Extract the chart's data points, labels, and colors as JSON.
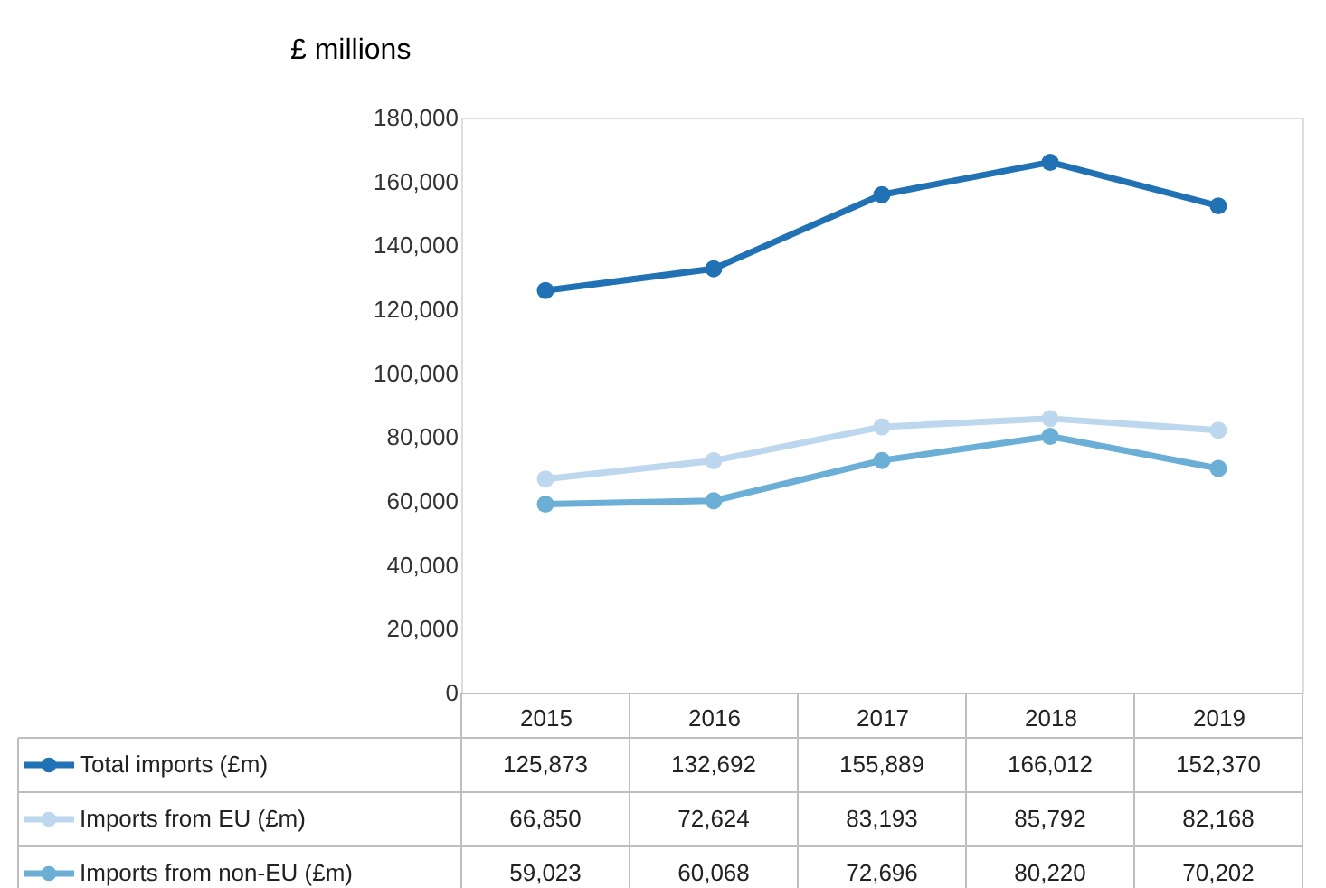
{
  "chart_data": {
    "type": "line",
    "ylabel": "£ millions",
    "categories": [
      "2015",
      "2016",
      "2017",
      "2018",
      "2019"
    ],
    "series": [
      {
        "name": "Total imports (£m)",
        "color": "#2171b5",
        "values": [
          125873,
          132692,
          155889,
          166012,
          152370
        ],
        "value_labels": [
          "125,873",
          "132,692",
          "155,889",
          "166,012",
          "152,370"
        ]
      },
      {
        "name": "Imports from EU (£m)",
        "color": "#bdd7ee",
        "values": [
          66850,
          72624,
          83193,
          85792,
          82168
        ],
        "value_labels": [
          "66,850",
          "72,624",
          "83,193",
          "85,792",
          "82,168"
        ]
      },
      {
        "name": "Imports from non-EU (£m)",
        "color": "#6baed6",
        "values": [
          59023,
          60068,
          72696,
          80220,
          70202
        ],
        "value_labels": [
          "59,023",
          "60,068",
          "72,696",
          "80,220",
          "70,202"
        ]
      }
    ],
    "ylim": [
      0,
      180000
    ],
    "yticks": [
      {
        "value": 0,
        "label": "0"
      },
      {
        "value": 20000,
        "label": "20,000"
      },
      {
        "value": 40000,
        "label": "40,000"
      },
      {
        "value": 60000,
        "label": "60,000"
      },
      {
        "value": 80000,
        "label": "80,000"
      },
      {
        "value": 100000,
        "label": "100,000"
      },
      {
        "value": 120000,
        "label": "120,000"
      },
      {
        "value": 140000,
        "label": "140,000"
      },
      {
        "value": 160000,
        "label": "160,000"
      },
      {
        "value": 180000,
        "label": "180,000"
      }
    ],
    "legend": "bottom",
    "marker": "circle",
    "line_style": "solid"
  }
}
